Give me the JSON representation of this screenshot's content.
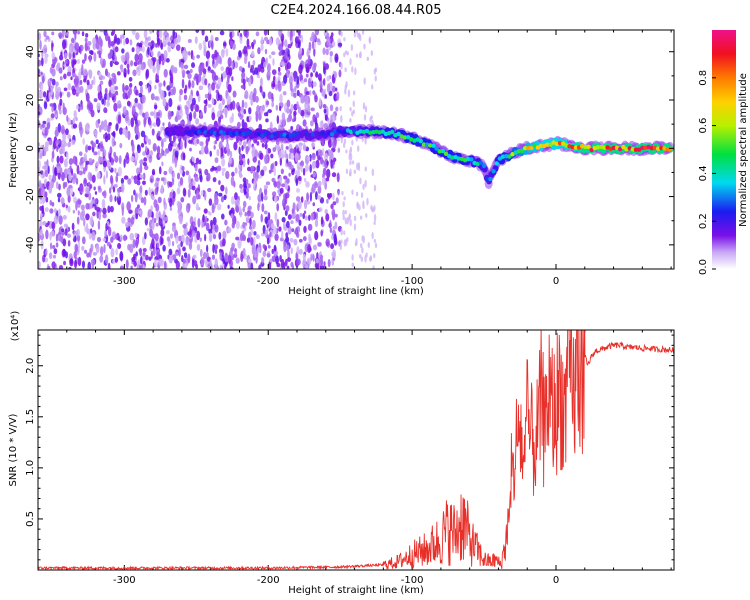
{
  "chart_data": [
    {
      "type": "heatmap",
      "title": "C2E4.2024.166.08.44.R05",
      "xlabel": "Height of straight line (km)",
      "ylabel": "Frequency (Hz)",
      "xlim": [
        -360,
        82
      ],
      "ylim": [
        -50,
        49
      ],
      "xticks": [
        -300,
        -200,
        -100,
        0
      ],
      "yticks": [
        -40,
        -20,
        0,
        20,
        40
      ],
      "colorbar": {
        "label": "Normalized spectral amplitude",
        "range": [
          0,
          1
        ],
        "ticks": [
          "0.0",
          "0.2",
          "0.4",
          "0.6",
          "0.8"
        ],
        "tick_values": [
          0.0,
          0.2,
          0.4,
          0.6,
          0.8
        ]
      },
      "noise_region_x": [
        -360,
        -150
      ],
      "sparse_noise_region_x": [
        -150,
        -125
      ],
      "ridge": [
        {
          "x": -270,
          "y": 7,
          "amp": 0.2
        },
        {
          "x": -240,
          "y": 7,
          "amp": 0.3
        },
        {
          "x": -210,
          "y": 6,
          "amp": 0.25
        },
        {
          "x": -185,
          "y": 5,
          "amp": 0.3
        },
        {
          "x": -160,
          "y": 6,
          "amp": 0.25
        },
        {
          "x": -150,
          "y": 7,
          "amp": 0.35
        },
        {
          "x": -130,
          "y": 7,
          "amp": 0.45
        },
        {
          "x": -110,
          "y": 6,
          "amp": 0.5
        },
        {
          "x": -95,
          "y": 3,
          "amp": 0.55
        },
        {
          "x": -80,
          "y": -1,
          "amp": 0.5
        },
        {
          "x": -70,
          "y": -4,
          "amp": 0.55
        },
        {
          "x": -60,
          "y": -5,
          "amp": 0.5
        },
        {
          "x": -50,
          "y": -7,
          "amp": 0.45
        },
        {
          "x": -47,
          "y": -14,
          "amp": 0.4
        },
        {
          "x": -40,
          "y": -5,
          "amp": 0.5
        },
        {
          "x": -30,
          "y": -2,
          "amp": 0.6
        },
        {
          "x": -20,
          "y": 0,
          "amp": 0.75
        },
        {
          "x": -10,
          "y": 1,
          "amp": 0.8
        },
        {
          "x": 0,
          "y": 2,
          "amp": 0.8
        },
        {
          "x": 10,
          "y": 1,
          "amp": 0.85
        },
        {
          "x": 20,
          "y": 0,
          "amp": 0.95
        },
        {
          "x": 50,
          "y": 0,
          "amp": 0.95
        },
        {
          "x": 80,
          "y": 0,
          "amp": 0.95
        }
      ]
    },
    {
      "type": "line",
      "xlabel": "Height of straight line (km)",
      "ylabel": "SNR (10 * V/V)",
      "y_multiplier": "(x10⁴)",
      "xlim": [
        -360,
        82
      ],
      "ylim": [
        0,
        2.35
      ],
      "xticks": [
        -300,
        -200,
        -100,
        0
      ],
      "yticks": [
        0.5,
        1.0,
        1.5,
        2.0
      ],
      "ytick_labels": [
        "0.5",
        "1.0",
        "1.5",
        "2.0"
      ],
      "series": [
        {
          "color": "#e8302a",
          "x": [
            -360,
            -300,
            -200,
            -150,
            -120,
            -110,
            -100,
            -90,
            -80,
            -75,
            -70,
            -65,
            -60,
            -55,
            -50,
            -45,
            -42,
            -38,
            -35,
            -32,
            -30,
            -28,
            -25,
            -22,
            -20,
            -18,
            -15,
            -12,
            -10,
            -8,
            -5,
            -2,
            0,
            3,
            6,
            9,
            12,
            15,
            18,
            20,
            22,
            25,
            28,
            30,
            35,
            40,
            45,
            50,
            55,
            60,
            65,
            70,
            75,
            82
          ],
          "y": [
            0.02,
            0.02,
            0.02,
            0.03,
            0.05,
            0.08,
            0.15,
            0.2,
            0.3,
            0.4,
            0.35,
            0.5,
            0.3,
            0.2,
            0.1,
            0.08,
            0.1,
            0.05,
            0.3,
            0.6,
            0.9,
            1.2,
            1.4,
            1.0,
            1.5,
            1.3,
            1.2,
            1.4,
            1.7,
            1.3,
            1.8,
            1.5,
            1.6,
            1.8,
            1.5,
            2.0,
            1.7,
            1.9,
            2.05,
            2.1,
            2.0,
            2.1,
            2.15,
            2.15,
            2.18,
            2.2,
            2.2,
            2.18,
            2.18,
            2.17,
            2.17,
            2.16,
            2.16,
            2.15
          ]
        }
      ]
    }
  ]
}
